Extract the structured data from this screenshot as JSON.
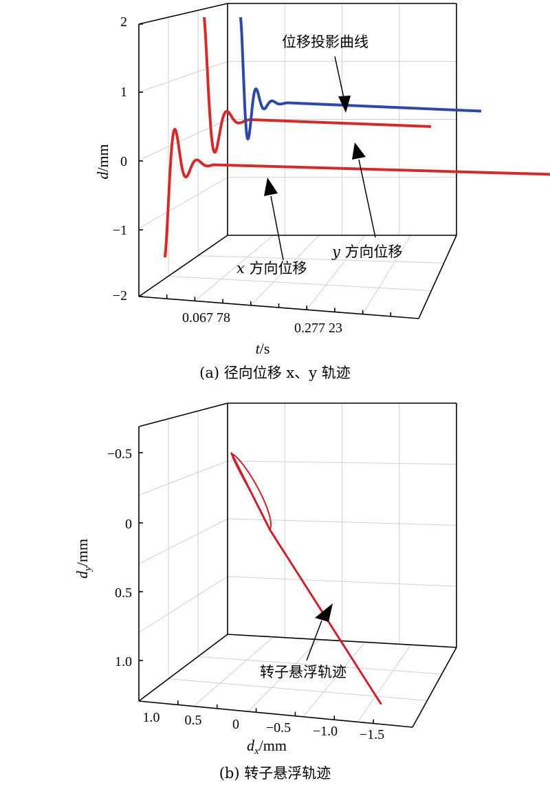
{
  "chart_data": [
    {
      "type": "line",
      "panel": "a",
      "caption": "(a) 径向位移 x、y 轨迹",
      "xlabel": "t/s",
      "ylabel": "d/mm",
      "zlim": [
        -2,
        2
      ],
      "z_ticks": [
        "2",
        "1",
        "0",
        "−1",
        "−2"
      ],
      "t_ticks": [
        "0.067 78",
        "0.277 23"
      ],
      "grid": true,
      "series": [
        {
          "name": "x 方向位移",
          "color": "#d42a2a",
          "oscillation": {
            "start": -1.4,
            "peaks": [
              0.45,
              -0.1,
              0.03
            ],
            "settle": -0.05
          }
        },
        {
          "name": "y 方向位移",
          "color": "#d42a2a",
          "oscillation": {
            "start": 1.7,
            "peaks": [
              -0.05,
              0.38,
              0.12
            ],
            "settle": 0.2
          }
        },
        {
          "name": "位移投影曲线",
          "color": "#2e48a8",
          "oscillation": {
            "start": 1.85,
            "peaks": [
              -0.6,
              1.0,
              0.2
            ],
            "settle": 0.6
          }
        }
      ],
      "annotations": [
        "位移投影曲线",
        "x 方向位移",
        "y 方向位移"
      ]
    },
    {
      "type": "line",
      "panel": "b",
      "caption": "(b) 转子悬浮轨迹",
      "xlabel": "dx/mm",
      "ylabel": "dy/mm",
      "dx_ticks": [
        "1.0",
        "0.5",
        "0",
        "−0.5",
        "−1.0",
        "−1.5"
      ],
      "dy_ticks": [
        "−0.5",
        "0",
        "0.5",
        "1.0"
      ],
      "grid": true,
      "series": [
        {
          "name": "转子悬浮轨迹",
          "color": "#c8232c",
          "points": [
            [
              0.05,
              -0.5
            ],
            [
              -0.4,
              0.05
            ],
            [
              -1.7,
              1.3
            ]
          ]
        }
      ],
      "annotations": [
        "转子悬浮轨迹"
      ]
    }
  ],
  "labels": {
    "a_z_ticks": [
      "2",
      "1",
      "0",
      "−1",
      "−2"
    ],
    "a_t_ticks": [
      "0.067 78",
      "0.277 23"
    ],
    "a_ylabel_d": "d",
    "a_ylabel_unit": "/mm",
    "a_xlabel_t": "t",
    "a_xlabel_unit": "/s",
    "a_anno_proj": "位移投影曲线",
    "a_anno_x_var": "x",
    "a_anno_x_rest": " 方向位移",
    "a_anno_y_var": "y",
    "a_anno_y_rest": " 方向位移",
    "a_caption": "(a) 径向位移 x、y 轨迹",
    "b_dy_ticks": [
      "−0.5",
      "0",
      "0.5",
      "1.0"
    ],
    "b_dx_ticks": [
      "1.0",
      "0.5",
      "0",
      "−0.5",
      "−1.0",
      "−1.5"
    ],
    "b_ylabel_d": "d",
    "b_ylabel_sub": "y",
    "b_ylabel_unit": "/mm",
    "b_xlabel_d": "d",
    "b_xlabel_sub": "x",
    "b_xlabel_unit": "/mm",
    "b_anno": "转子悬浮轨迹",
    "b_caption": "(b) 转子悬浮轨迹"
  },
  "colors": {
    "red": "#d42a2a",
    "blue": "#2e48a8",
    "trajectory": "#c8232c",
    "grid": "#cfcfcf"
  }
}
